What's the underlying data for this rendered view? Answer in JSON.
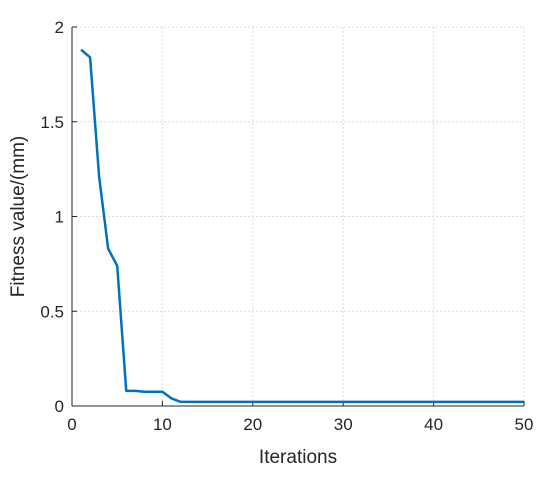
{
  "chart_data": {
    "type": "line",
    "title": "",
    "xlabel": "Iterations",
    "ylabel": "Fitness value/(mm)",
    "xlim": [
      0,
      50
    ],
    "ylim": [
      0,
      2
    ],
    "xticks": [
      0,
      10,
      20,
      30,
      40,
      50
    ],
    "yticks": [
      0,
      0.5,
      1,
      1.5,
      2
    ],
    "xtick_labels": [
      "0",
      "10",
      "20",
      "30",
      "40",
      "50"
    ],
    "ytick_labels": [
      "0",
      "0.5",
      "1",
      "1.5",
      "2"
    ],
    "grid": true,
    "legend": "none",
    "series": [
      {
        "color": "#0072bd",
        "x": [
          1,
          2,
          3,
          4,
          5,
          6,
          7,
          8,
          9,
          10,
          11,
          12,
          13,
          14,
          15,
          16,
          17,
          18,
          19,
          20,
          21,
          22,
          23,
          24,
          25,
          26,
          27,
          28,
          29,
          30,
          31,
          32,
          33,
          34,
          35,
          36,
          37,
          38,
          39,
          40,
          41,
          42,
          43,
          44,
          45,
          46,
          47,
          48,
          49,
          50
        ],
        "y": [
          1.88,
          1.84,
          1.21,
          0.83,
          0.74,
          0.08,
          0.08,
          0.075,
          0.075,
          0.075,
          0.04,
          0.022,
          0.022,
          0.022,
          0.022,
          0.022,
          0.022,
          0.022,
          0.022,
          0.022,
          0.022,
          0.022,
          0.022,
          0.022,
          0.022,
          0.022,
          0.022,
          0.022,
          0.022,
          0.022,
          0.022,
          0.022,
          0.022,
          0.022,
          0.022,
          0.022,
          0.022,
          0.022,
          0.022,
          0.022,
          0.022,
          0.022,
          0.022,
          0.022,
          0.022,
          0.022,
          0.022,
          0.022,
          0.022,
          0.022
        ]
      }
    ]
  }
}
